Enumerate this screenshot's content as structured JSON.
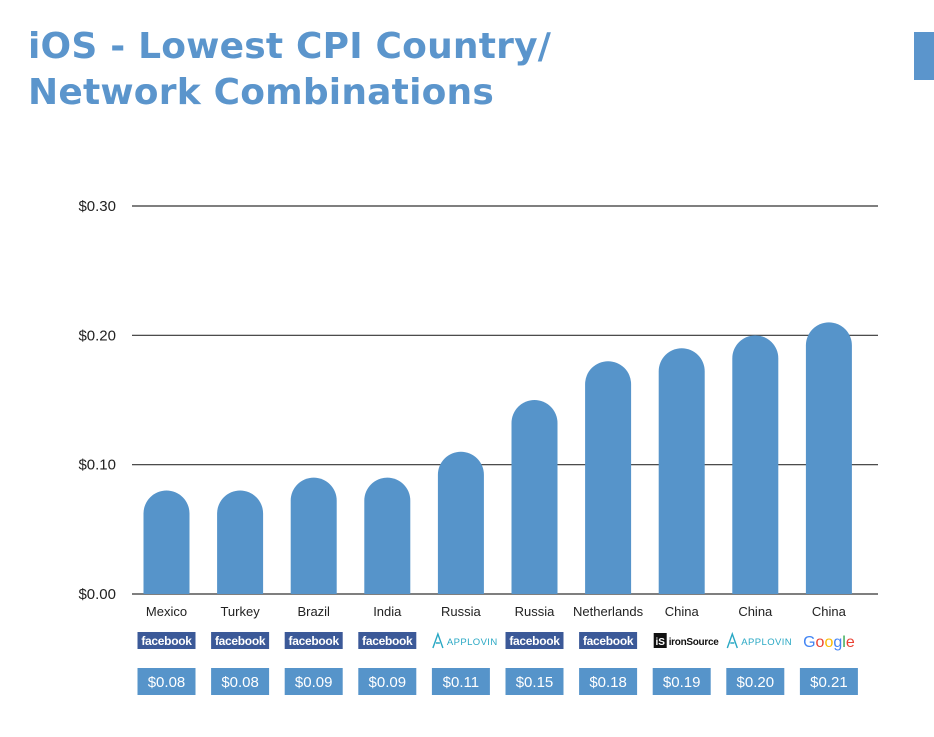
{
  "colors": {
    "title": "#5b95cc",
    "bar": "#5694ca",
    "gridline": "#333333",
    "value_box": "#5694ca",
    "facebook": "#3b5998",
    "applovin": "#29a8c4",
    "ironsource": "#111111"
  },
  "header": {
    "title_line1": "iOS - Lowest CPI Country/",
    "title_line2": "Network Combinations"
  },
  "chart_data": {
    "type": "bar",
    "title": "iOS - Lowest CPI Country/ Network Combinations",
    "ylim": [
      0,
      0.3
    ],
    "yticks": [
      "$0.00",
      "$0.10",
      "$0.20",
      "$0.30"
    ],
    "ytick_values": [
      0,
      0.1,
      0.2,
      0.3
    ],
    "grid": true,
    "categories": [
      "Mexico",
      "Turkey",
      "Brazil",
      "India",
      "Russia",
      "Russia",
      "Netherlands",
      "China",
      "China",
      "China"
    ],
    "networks": [
      {
        "name": "facebook",
        "icon": "facebook-logo"
      },
      {
        "name": "facebook",
        "icon": "facebook-logo"
      },
      {
        "name": "facebook",
        "icon": "facebook-logo"
      },
      {
        "name": "facebook",
        "icon": "facebook-logo"
      },
      {
        "name": "APPLOVIN",
        "icon": "applovin-logo"
      },
      {
        "name": "facebook",
        "icon": "facebook-logo"
      },
      {
        "name": "facebook",
        "icon": "facebook-logo"
      },
      {
        "name": "ironSource",
        "icon": "ironsource-logo",
        "badge": "iS"
      },
      {
        "name": "APPLOVIN",
        "icon": "applovin-logo"
      },
      {
        "name": "Google",
        "icon": "google-logo"
      }
    ],
    "values": [
      0.08,
      0.08,
      0.09,
      0.09,
      0.11,
      0.15,
      0.18,
      0.19,
      0.2,
      0.21
    ],
    "value_labels": [
      "$0.08",
      "$0.08",
      "$0.09",
      "$0.09",
      "$0.11",
      "$0.15",
      "$0.18",
      "$0.19",
      "$0.20",
      "$0.21"
    ]
  }
}
